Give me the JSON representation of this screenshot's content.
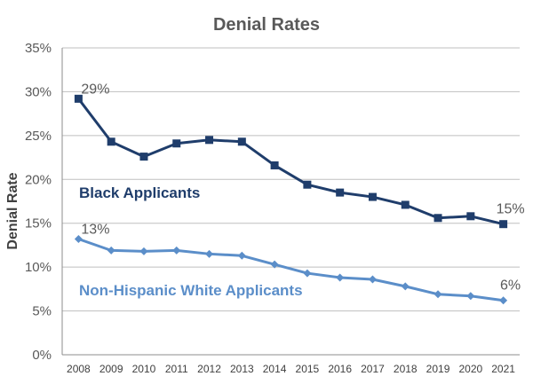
{
  "chart_data": {
    "type": "line",
    "title": "Denial Rates",
    "xlabel": "",
    "ylabel": "Denial Rate",
    "ylim": [
      0,
      35
    ],
    "yticks": [
      "0%",
      "5%",
      "10%",
      "15%",
      "20%",
      "25%",
      "30%",
      "35%"
    ],
    "ytick_values": [
      0,
      5,
      10,
      15,
      20,
      25,
      30,
      35
    ],
    "x": [
      "2008",
      "2009",
      "2010",
      "2011",
      "2012",
      "2013",
      "2014",
      "2015",
      "2016",
      "2017",
      "2018",
      "2019",
      "2020",
      "2021"
    ],
    "grid": true,
    "series": [
      {
        "name": "Black Applicants",
        "color": "#1f3d6b",
        "marker": "square",
        "values": [
          29.2,
          24.3,
          22.6,
          24.1,
          24.5,
          24.3,
          21.6,
          19.4,
          18.5,
          18.0,
          17.1,
          15.6,
          15.8,
          14.9
        ],
        "start_label": "29%",
        "end_label": "15%"
      },
      {
        "name": "Non-Hispanic White Applicants",
        "color": "#5b8ec9",
        "marker": "diamond",
        "values": [
          13.2,
          11.9,
          11.8,
          11.9,
          11.5,
          11.3,
          10.3,
          9.3,
          8.8,
          8.6,
          7.8,
          6.9,
          6.7,
          6.2
        ],
        "start_label": "13%",
        "end_label": "6%"
      }
    ]
  }
}
